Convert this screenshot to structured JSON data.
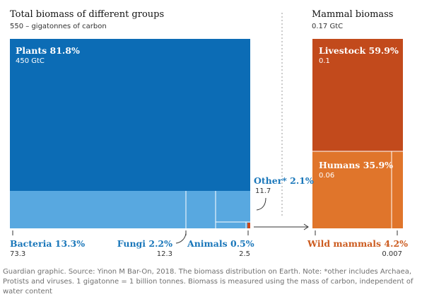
{
  "header_left": {
    "title": "Total biomass of different groups",
    "subtitle": "550 – gigatonnes of carbon"
  },
  "header_right": {
    "title": "Mammal biomass",
    "subtitle": "0.17 GtC"
  },
  "labels": {
    "plants": {
      "name": "Plants 81.8%",
      "value": "450 GtC"
    },
    "bacteria": {
      "name": "Bacteria 13.3%",
      "value": "73.3"
    },
    "fungi": {
      "name": "Fungi 2.2%",
      "value": "12.3"
    },
    "animals": {
      "name": "Animals 0.5%",
      "value": "2.5"
    },
    "other": {
      "name": "Other* 2.1%",
      "value": "11.7"
    },
    "livestock": {
      "name": "Livestock 59.9%",
      "value": "0.1"
    },
    "humans": {
      "name": "Humans 35.9%",
      "value": "0.06"
    },
    "wild_mammals": {
      "name": "Wild mammals 4.2%",
      "value": "0.007"
    }
  },
  "colors": {
    "plants": "#0c6cb5",
    "bottom_groups": "#58a8e0",
    "animals_highlight": "#c94a1c",
    "livestock": "#c24a1c",
    "humans_wild": "#e0752b"
  },
  "footer": "Guardian graphic. Source: Yinon M Bar-On, 2018. The biomass distribution on Earth. Note: *other includes Archaea, Protists and viruses. 1 gigatonne = 1 billion tonnes. Biomass is measured using the mass of carbon, independent of water content",
  "chart_data": [
    {
      "type": "treemap",
      "title": "Total biomass of different groups",
      "subtitle": "550 – gigatonnes of carbon",
      "unit": "GtC",
      "items": [
        {
          "name": "Plants",
          "percent": 81.8,
          "value": 450
        },
        {
          "name": "Bacteria",
          "percent": 13.3,
          "value": 73.3
        },
        {
          "name": "Fungi",
          "percent": 2.2,
          "value": 12.3
        },
        {
          "name": "Animals",
          "percent": 0.5,
          "value": 2.5
        },
        {
          "name": "Other*",
          "percent": 2.1,
          "value": 11.7
        }
      ]
    },
    {
      "type": "treemap",
      "title": "Mammal biomass",
      "subtitle": "0.17 GtC",
      "unit": "GtC",
      "items": [
        {
          "name": "Livestock",
          "percent": 59.9,
          "value": 0.1
        },
        {
          "name": "Humans",
          "percent": 35.9,
          "value": 0.06
        },
        {
          "name": "Wild mammals",
          "percent": 4.2,
          "value": 0.007
        }
      ]
    }
  ]
}
